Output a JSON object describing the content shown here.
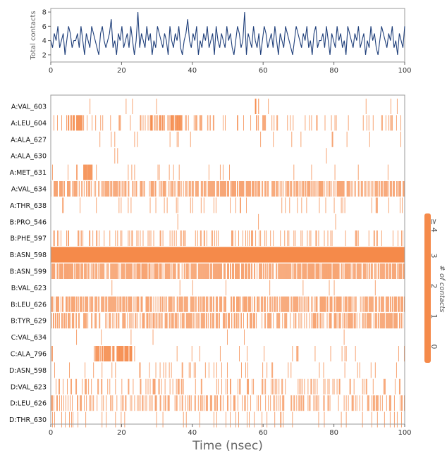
{
  "chart_data": [
    {
      "type": "line",
      "ylabel": "Total contacts",
      "xlabel": "",
      "xlim": [
        0,
        100
      ],
      "ylim": [
        1,
        8.5
      ],
      "xticks": [
        "0",
        "20",
        "40",
        "60",
        "80",
        "100"
      ],
      "yticks": [
        "2",
        "4",
        "6",
        "8"
      ],
      "line_color": "#1f3f7a",
      "series": [
        {
          "values": [
            4,
            3,
            5,
            4,
            6,
            3,
            4,
            5,
            2,
            4,
            6,
            5,
            3,
            4,
            4,
            5,
            3,
            6,
            4,
            2,
            5,
            4,
            3,
            6,
            5,
            4,
            3,
            2,
            5,
            6,
            4,
            3,
            4,
            5,
            7,
            3,
            4,
            2,
            5,
            4,
            6,
            3,
            4,
            5,
            3,
            6,
            4,
            2,
            4,
            8,
            3,
            5,
            4,
            3,
            6,
            4,
            5,
            2,
            4,
            3,
            6,
            5,
            4,
            3,
            5,
            4,
            2,
            6,
            4,
            3,
            5,
            4,
            6,
            3,
            2,
            4,
            5,
            7,
            4,
            3,
            5,
            4,
            6,
            2,
            4,
            3,
            5,
            4,
            6,
            3,
            4,
            5,
            2,
            6,
            4,
            3,
            5,
            4,
            3,
            6,
            4,
            5,
            3,
            2,
            4,
            6,
            5,
            3,
            4,
            8,
            2,
            5,
            4,
            3,
            6,
            4,
            3,
            5,
            2,
            4,
            6,
            5,
            3,
            4,
            5,
            3,
            6,
            4,
            2,
            5,
            4,
            3,
            6,
            5,
            4,
            3,
            2,
            4,
            6,
            5,
            4,
            3,
            5,
            4,
            6,
            3,
            4,
            2,
            5,
            6,
            3,
            4,
            4,
            5,
            3,
            6,
            4,
            2,
            5,
            4,
            3,
            6,
            4,
            5,
            3,
            4,
            2,
            6,
            5,
            4,
            3,
            5,
            4,
            6,
            3,
            4,
            5,
            2,
            4,
            3,
            6,
            4,
            5,
            3,
            2,
            4,
            6,
            5,
            4,
            3,
            5,
            4,
            6,
            3,
            4,
            2,
            5,
            4,
            3,
            6
          ]
        }
      ]
    },
    {
      "type": "heatmap",
      "xlabel": "Time (nsec)",
      "ylabel": "",
      "xlim": [
        0,
        100
      ],
      "xticks": [
        "0",
        "20",
        "40",
        "60",
        "80",
        "100"
      ],
      "color": "#f58a4a",
      "rows": [
        {
          "label": "A:VAL_603",
          "density": 0.01,
          "spans": [
            [
              57.5,
              59
            ]
          ]
        },
        {
          "label": "A:LEU_604",
          "density": 0.18,
          "spans": [
            [
              5,
              9
            ],
            [
              28,
              37
            ]
          ]
        },
        {
          "label": "A:ALA_627",
          "density": 0.03,
          "spans": []
        },
        {
          "label": "A:ALA_630",
          "density": 0.005,
          "spans": []
        },
        {
          "label": "A:MET_631",
          "density": 0.06,
          "spans": [
            [
              9,
              12
            ]
          ]
        },
        {
          "label": "A:VAL_634",
          "density": 0.65,
          "spans": []
        },
        {
          "label": "A:THR_638",
          "density": 0.1,
          "spans": []
        },
        {
          "label": "B:PRO_546",
          "density": 0.005,
          "spans": []
        },
        {
          "label": "B:PHE_597",
          "density": 0.22,
          "spans": []
        },
        {
          "label": "B:ASN_598",
          "density": 1.0,
          "spans": [
            [
              0,
              100
            ]
          ]
        },
        {
          "label": "B:ASN_599",
          "density": 0.78,
          "spans": []
        },
        {
          "label": "B:VAL_623",
          "density": 0.01,
          "spans": []
        },
        {
          "label": "B:LEU_626",
          "density": 0.7,
          "spans": []
        },
        {
          "label": "B:TYR_629",
          "density": 0.55,
          "spans": []
        },
        {
          "label": "C:VAL_634",
          "density": 0.02,
          "spans": []
        },
        {
          "label": "C:ALA_796",
          "density": 0.06,
          "spans": [
            [
              12,
              23
            ]
          ]
        },
        {
          "label": "D:ASN_598",
          "density": 0.09,
          "spans": []
        },
        {
          "label": "D:VAL_623",
          "density": 0.2,
          "spans": []
        },
        {
          "label": "D:LEU_626",
          "density": 0.35,
          "spans": []
        },
        {
          "label": "D:THR_630",
          "density": 0.08,
          "spans": []
        }
      ],
      "colorbar": {
        "label": "# of contacts",
        "ticks": [
          "0",
          "1",
          "2",
          "3",
          "≥ 4"
        ],
        "color": "#f58a4a"
      }
    }
  ]
}
